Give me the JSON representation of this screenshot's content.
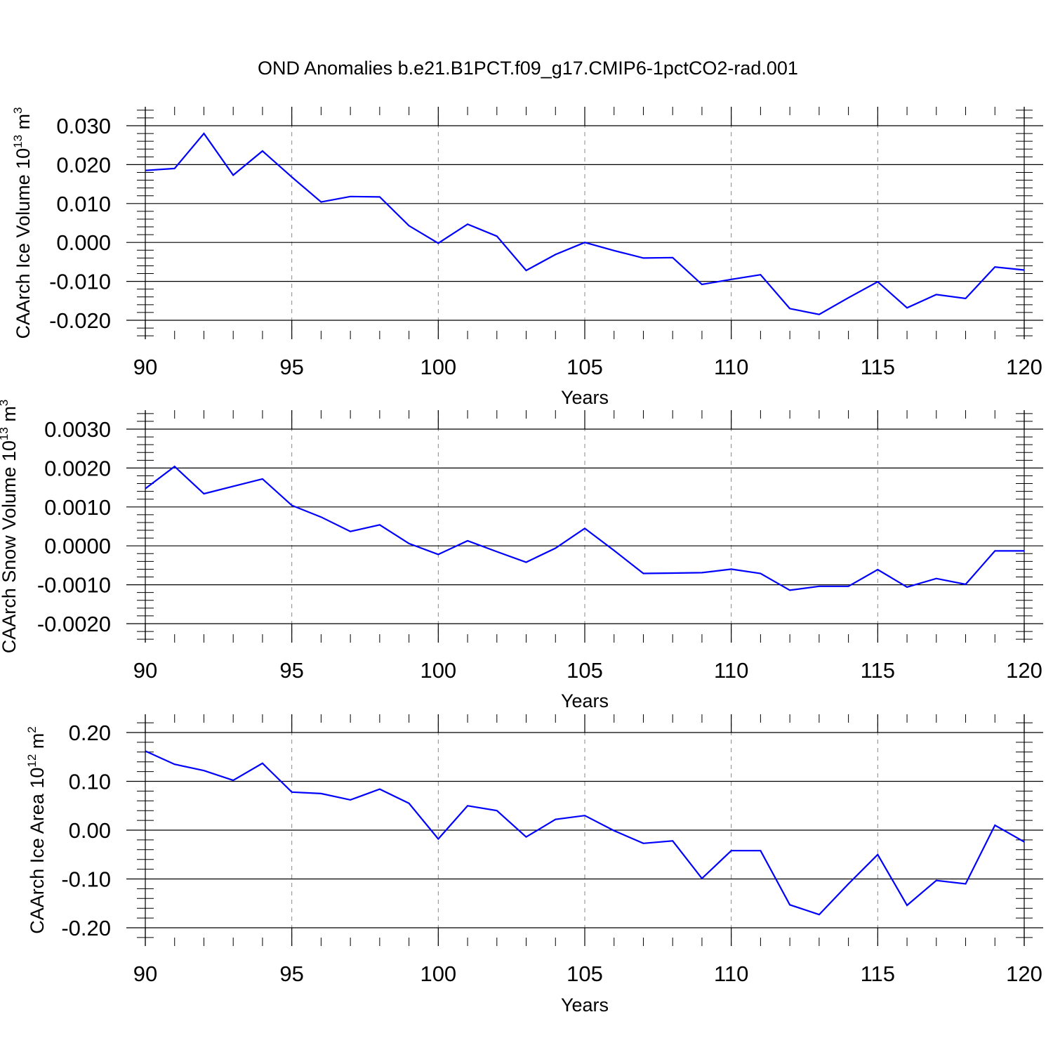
{
  "title": "OND Anomalies b.e21.B1PCT.f09_g17.CMIP6-1pctCO2-rad.001",
  "colors": {
    "line": "#0000ff",
    "axis": "#000000",
    "grid": "#888888"
  },
  "chart_data": [
    {
      "type": "line",
      "ylabel": "CAArch Ice Volume 10",
      "ylabel_sup": "13",
      "ylabel_unit": " m",
      "ylabel_unit_sup": "3",
      "xlabel": "Years",
      "xlim": [
        90,
        120
      ],
      "ylim": [
        -0.02,
        0.03
      ],
      "xticks": [
        "90",
        "95",
        "100",
        "105",
        "110",
        "115",
        "120"
      ],
      "yticks": [
        "-0.020",
        "-0.010",
        "0.000",
        "0.010",
        "0.020",
        "0.030"
      ],
      "grid": "vertical dashed at major x ticks",
      "x": [
        90,
        91,
        92,
        93,
        94,
        95,
        96,
        97,
        98,
        99,
        100,
        101,
        102,
        103,
        104,
        105,
        106,
        107,
        108,
        109,
        110,
        111,
        112,
        113,
        114,
        115,
        116,
        117,
        118,
        119,
        120
      ],
      "values": [
        0.0185,
        0.019,
        0.028,
        0.0173,
        0.0235,
        0.0168,
        0.0104,
        0.0118,
        0.0117,
        0.0043,
        -0.0002,
        0.0047,
        0.0016,
        -0.0072,
        -0.0031,
        0.0,
        -0.0021,
        -0.004,
        -0.0039,
        -0.0108,
        -0.0095,
        -0.0083,
        -0.017,
        -0.0185,
        -0.0142,
        -0.0101,
        -0.0168,
        -0.0134,
        -0.0144,
        -0.0063,
        -0.0071
      ]
    },
    {
      "type": "line",
      "ylabel": "CAArch Snow Volume 10",
      "ylabel_sup": "13",
      "ylabel_unit": " m",
      "ylabel_unit_sup": "3",
      "xlabel": "Years",
      "xlim": [
        90,
        120
      ],
      "ylim": [
        -0.002,
        0.003
      ],
      "xticks": [
        "90",
        "95",
        "100",
        "105",
        "110",
        "115",
        "120"
      ],
      "yticks": [
        "-0.0020",
        "-0.0010",
        "0.0000",
        "0.0010",
        "0.0020",
        "0.0030"
      ],
      "grid": "vertical dashed at major x ticks",
      "x": [
        90,
        91,
        92,
        93,
        94,
        95,
        96,
        97,
        98,
        99,
        100,
        101,
        102,
        103,
        104,
        105,
        106,
        107,
        108,
        109,
        110,
        111,
        112,
        113,
        114,
        115,
        116,
        117,
        118,
        119,
        120
      ],
      "values": [
        0.00147,
        0.00204,
        0.00134,
        0.00153,
        0.00172,
        0.00104,
        0.00074,
        0.00037,
        0.00054,
        6e-05,
        -0.00022,
        0.00013,
        -0.00015,
        -0.00042,
        -6e-05,
        0.00045,
        -0.00012,
        -0.00071,
        -0.0007,
        -0.00069,
        -0.0006,
        -0.00071,
        -0.00114,
        -0.00104,
        -0.00104,
        -0.00061,
        -0.00106,
        -0.00084,
        -0.00099,
        -0.00013,
        -0.00013
      ]
    },
    {
      "type": "line",
      "ylabel": "CAArch Ice Area 10",
      "ylabel_sup": "12",
      "ylabel_unit": " m",
      "ylabel_unit_sup": "2",
      "xlabel": "Years",
      "xlim": [
        90,
        120
      ],
      "ylim": [
        -0.2,
        0.2
      ],
      "xticks": [
        "90",
        "95",
        "100",
        "105",
        "110",
        "115",
        "120"
      ],
      "yticks": [
        "-0.20",
        "-0.10",
        "0.00",
        "0.10",
        "0.20"
      ],
      "grid": "vertical dashed at major x ticks",
      "x": [
        90,
        91,
        92,
        93,
        94,
        95,
        96,
        97,
        98,
        99,
        100,
        101,
        102,
        103,
        104,
        105,
        106,
        107,
        108,
        109,
        110,
        111,
        112,
        113,
        114,
        115,
        116,
        117,
        118,
        119,
        120
      ],
      "values": [
        0.162,
        0.135,
        0.122,
        0.102,
        0.137,
        0.078,
        0.075,
        0.062,
        0.084,
        0.055,
        -0.018,
        0.05,
        0.04,
        -0.014,
        0.022,
        0.03,
        -0.001,
        -0.027,
        -0.022,
        -0.099,
        -0.042,
        -0.042,
        -0.153,
        -0.173,
        -0.11,
        -0.05,
        -0.154,
        -0.103,
        -0.11,
        0.01,
        -0.024
      ]
    }
  ]
}
